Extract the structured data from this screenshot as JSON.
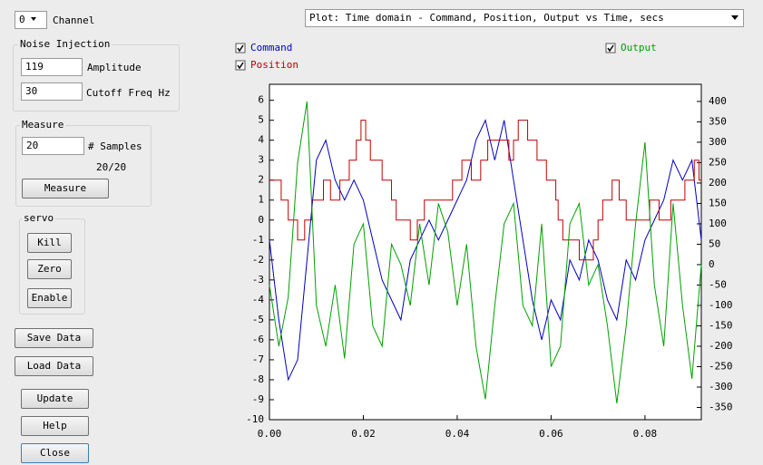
{
  "controls": {
    "channel": "0",
    "channel_label": "Channel",
    "noise_group": "Noise Injection",
    "amplitude": "119",
    "amplitude_label": "Amplitude",
    "cutoff": "30",
    "cutoff_label": "Cutoff Freq Hz",
    "measure_group": "Measure",
    "samples": "20",
    "samples_label": "# Samples",
    "samples_status": "20/20",
    "measure_button": "Measure",
    "servo_group": "servo",
    "kill": "Kill",
    "zero": "Zero",
    "enable": "Enable",
    "save": "Save Data",
    "load": "Load Data",
    "update": "Update",
    "help": "Help",
    "close": "Close",
    "plot_select": "Plot: Time domain - Command, Position, Output vs Time, secs"
  },
  "chart_data": {
    "type": "line",
    "x": [
      0,
      0.002,
      0.004,
      0.006,
      0.008,
      0.01,
      0.012,
      0.014,
      0.016,
      0.018,
      0.02,
      0.022,
      0.024,
      0.026,
      0.028,
      0.03,
      0.032,
      0.034,
      0.036,
      0.038,
      0.04,
      0.042,
      0.044,
      0.046,
      0.048,
      0.05,
      0.052,
      0.054,
      0.056,
      0.058,
      0.06,
      0.062,
      0.064,
      0.066,
      0.068,
      0.07,
      0.072,
      0.074,
      0.076,
      0.078,
      0.08,
      0.082,
      0.084,
      0.086,
      0.088,
      0.09,
      0.092
    ],
    "series": [
      {
        "name": "Command",
        "color": "#0000c0",
        "values": [
          -1,
          -5,
          -8,
          -7,
          -2,
          3,
          4,
          2,
          1,
          2,
          1,
          -1,
          -3,
          -4,
          -5,
          -2,
          -1,
          0,
          -1,
          0,
          1,
          2,
          4,
          5,
          3,
          5,
          2,
          -1,
          -4,
          -6,
          -4,
          -5,
          -2,
          -3,
          -1,
          -2,
          -4,
          -5,
          -2,
          -3,
          -1,
          0,
          1,
          3,
          2,
          3,
          -1
        ]
      },
      {
        "name": "Position",
        "color": "#c00000",
        "step": true,
        "x": [
          0,
          0.0025,
          0.004,
          0.006,
          0.0075,
          0.009,
          0.0115,
          0.013,
          0.015,
          0.017,
          0.0185,
          0.0195,
          0.0205,
          0.0215,
          0.024,
          0.026,
          0.027,
          0.03,
          0.0315,
          0.033,
          0.039,
          0.041,
          0.043,
          0.045,
          0.0465,
          0.051,
          0.052,
          0.053,
          0.055,
          0.057,
          0.059,
          0.061,
          0.0615,
          0.0625,
          0.066,
          0.069,
          0.07,
          0.071,
          0.073,
          0.0745,
          0.076,
          0.081,
          0.083,
          0.0855,
          0.0885,
          0.0905,
          0.0915
        ],
        "values": [
          2,
          1,
          0,
          -1,
          0,
          1,
          2,
          1,
          2,
          3,
          4,
          5,
          4,
          3,
          2,
          1,
          0,
          -1,
          0,
          1,
          2,
          3,
          2,
          3,
          4,
          3,
          4,
          5,
          4,
          3,
          2,
          1,
          0,
          -1,
          -2,
          -1,
          0,
          1,
          2,
          1,
          0,
          1,
          0,
          1,
          2,
          3,
          2
        ]
      },
      {
        "name": "Output",
        "color": "#00a000",
        "axis": "y2",
        "values": [
          -50,
          -200,
          -80,
          250,
          400,
          -100,
          -200,
          -50,
          -230,
          50,
          100,
          -150,
          -200,
          50,
          0,
          -100,
          100,
          -50,
          150,
          80,
          -100,
          50,
          -200,
          -330,
          -100,
          100,
          150,
          -100,
          -150,
          100,
          -250,
          -200,
          100,
          150,
          -50,
          0,
          -150,
          -340,
          -150,
          100,
          300,
          -50,
          -200,
          150,
          -100,
          -280,
          0
        ]
      }
    ],
    "xlim": [
      0,
      0.092
    ],
    "xticks": [
      {
        "value": 0,
        "label": "0.00"
      },
      {
        "value": 0.02,
        "label": "0.02"
      },
      {
        "value": 0.04,
        "label": "0.04"
      },
      {
        "value": 0.06,
        "label": "0.06"
      },
      {
        "value": 0.08,
        "label": "0.08"
      }
    ],
    "ylim": [
      -10,
      6.8
    ],
    "yticks": [
      -10,
      -9,
      -8,
      -7,
      -6,
      -5,
      -4,
      -3,
      -2,
      -1,
      0,
      1,
      2,
      3,
      4,
      5,
      6
    ],
    "y2lim": [
      -380,
      442
    ],
    "y2ticks": [
      -350,
      -300,
      -250,
      -200,
      -150,
      -100,
      -50,
      0,
      50,
      100,
      150,
      200,
      250,
      300,
      350,
      400
    ]
  }
}
